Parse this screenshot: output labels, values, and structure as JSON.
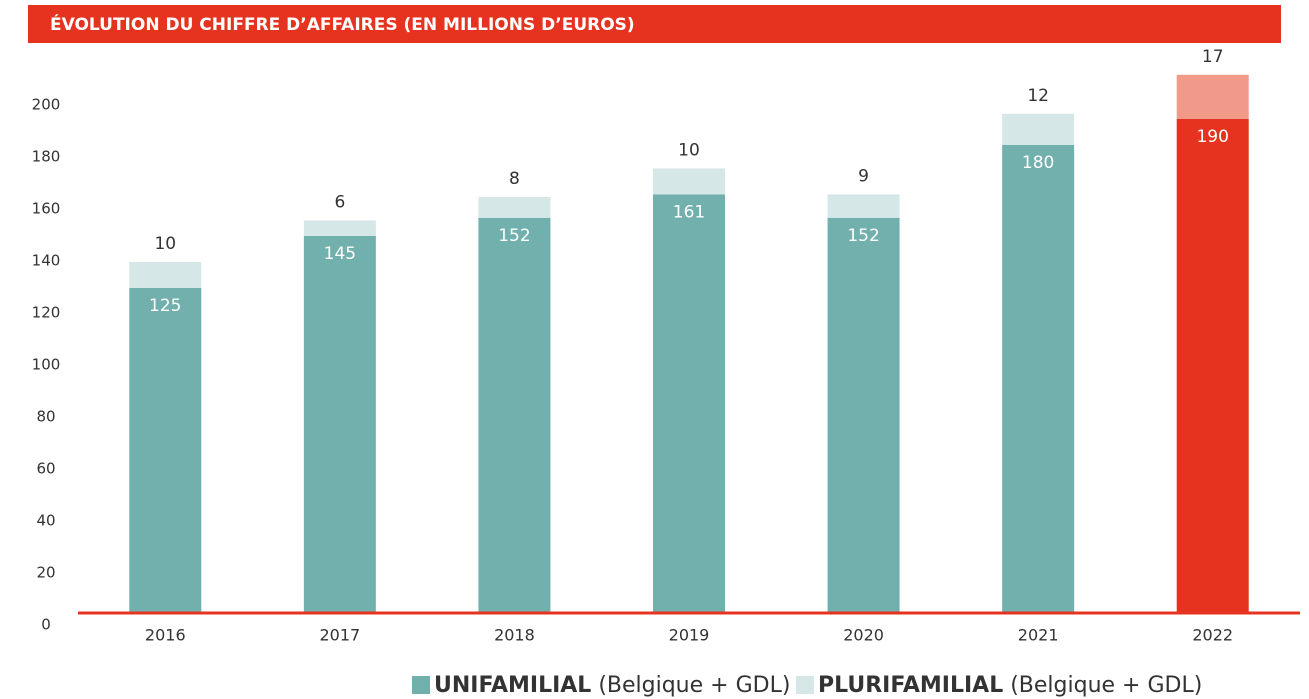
{
  "chart_data": {
    "type": "bar",
    "stacked": true,
    "title": "ÉVOLUTION DU CHIFFRE D’AFFAIRES (EN MILLIONS D’EUROS)",
    "categories": [
      "2016",
      "2017",
      "2018",
      "2019",
      "2020",
      "2021",
      "2022"
    ],
    "series": [
      {
        "name": "UNIFAMILIAL (Belgique + GDL)",
        "color": "#72b0ae",
        "colors": [
          "#72b0ae",
          "#72b0ae",
          "#72b0ae",
          "#72b0ae",
          "#72b0ae",
          "#72b0ae",
          "#e63320"
        ],
        "values": [
          125,
          145,
          152,
          161,
          152,
          180,
          190
        ]
      },
      {
        "name": "PLURIFAMILIAL (Belgique + GDL)",
        "color": "#d6e7e7",
        "colors": [
          "#d6e7e7",
          "#d6e7e7",
          "#d6e7e7",
          "#d6e7e7",
          "#d6e7e7",
          "#d6e7e7",
          "#f29a8a"
        ],
        "values": [
          10,
          6,
          8,
          10,
          9,
          12,
          17
        ]
      }
    ],
    "ylim": [
      0,
      200
    ],
    "yticks": [
      0,
      20,
      40,
      60,
      80,
      100,
      120,
      140,
      160,
      180,
      200
    ],
    "grid": false,
    "legend": "bottom"
  }
}
